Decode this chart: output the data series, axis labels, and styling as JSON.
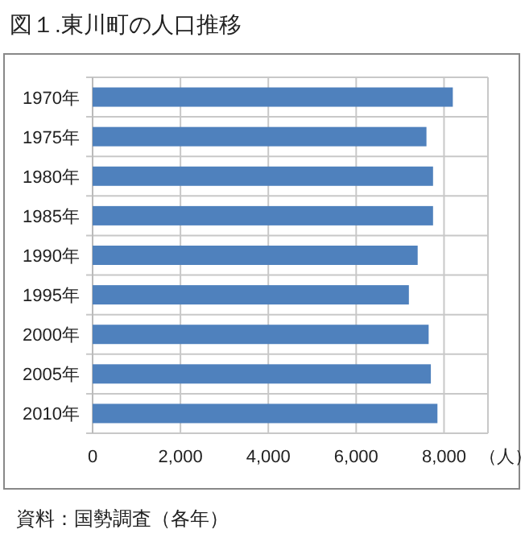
{
  "chart_data": {
    "type": "bar",
    "orientation": "horizontal",
    "title": "図１.東川町の人口推移",
    "xlabel": "（人）",
    "categories": [
      "1970年",
      "1975年",
      "1980年",
      "1985年",
      "1990年",
      "1995年",
      "2000年",
      "2005年",
      "2010年"
    ],
    "values": [
      8200,
      7600,
      7750,
      7750,
      7400,
      7200,
      7650,
      7700,
      7850
    ],
    "color": "#4f81bd",
    "xlim": [
      0,
      9000
    ],
    "xticks": [
      {
        "value": 0,
        "label": "0"
      },
      {
        "value": 2000,
        "label": "2,000"
      },
      {
        "value": 4000,
        "label": "4,000"
      },
      {
        "value": 6000,
        "label": "6,000"
      },
      {
        "value": 8000,
        "label": "8,000"
      }
    ],
    "grid": true,
    "annotations": [
      "資料：国勢調査（各年）"
    ]
  }
}
